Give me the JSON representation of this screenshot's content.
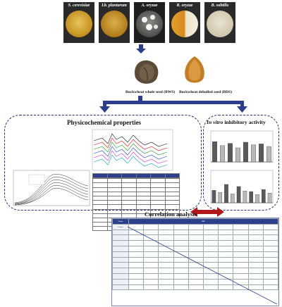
{
  "microbes": [
    "S. cerevisiae",
    "Lb. plantarum",
    "A. oryzae",
    "R. oryzae",
    "B. subtilis"
  ],
  "seeds": {
    "whole": "Buckwheat whole seed (BWS)",
    "dehulled": "Buckwheat dehulled seed (BDS)"
  },
  "physicochemical": {
    "title": "Physicochemical properties",
    "table_headers": [
      "",
      "",
      "",
      "",
      "",
      ""
    ],
    "table_rows": [
      [
        "",
        "",
        "",
        "",
        "",
        ""
      ],
      [
        "",
        "",
        "",
        "",
        "",
        ""
      ],
      [
        "",
        "",
        "",
        "",
        "",
        ""
      ],
      [
        "",
        "",
        "",
        "",
        "",
        ""
      ],
      [
        "",
        "",
        "",
        "",
        "",
        ""
      ],
      [
        "",
        "",
        "",
        "",
        "",
        ""
      ],
      [
        "",
        "",
        "",
        "",
        "",
        ""
      ],
      [
        "",
        "",
        "",
        "",
        "",
        ""
      ],
      [
        "",
        "",
        "",
        "",
        "",
        ""
      ],
      [
        "",
        "",
        "",
        "",
        "",
        ""
      ],
      [
        "",
        "",
        "",
        "",
        "",
        ""
      ],
      [
        "",
        "",
        "",
        "",
        "",
        ""
      ]
    ]
  },
  "inhibitory": {
    "title_italic": "In vitro",
    "title_rest": " inhibitory activity",
    "chart_top": {
      "values": [
        0.72,
        0.58,
        0.66,
        0.5,
        0.7,
        0.61,
        0.64,
        0.55
      ]
    },
    "chart_bottom": {
      "values": [
        0.42,
        0.35,
        0.62,
        0.3,
        0.55,
        0.4,
        0.38,
        0.28,
        0.45,
        0.33
      ]
    }
  },
  "correlation": {
    "title": "Correlation analysis",
    "row_labels": [
      "Protein",
      "",
      "",
      "",
      "",
      "",
      "",
      "",
      "",
      "",
      "",
      ""
    ],
    "side_label": ""
  },
  "colors": {
    "arrow_blue": "#2a3d8f",
    "double_arrow_red": "#b0161a",
    "panel_border": "#1f2f7a",
    "table_header": "#2c3f8c"
  }
}
